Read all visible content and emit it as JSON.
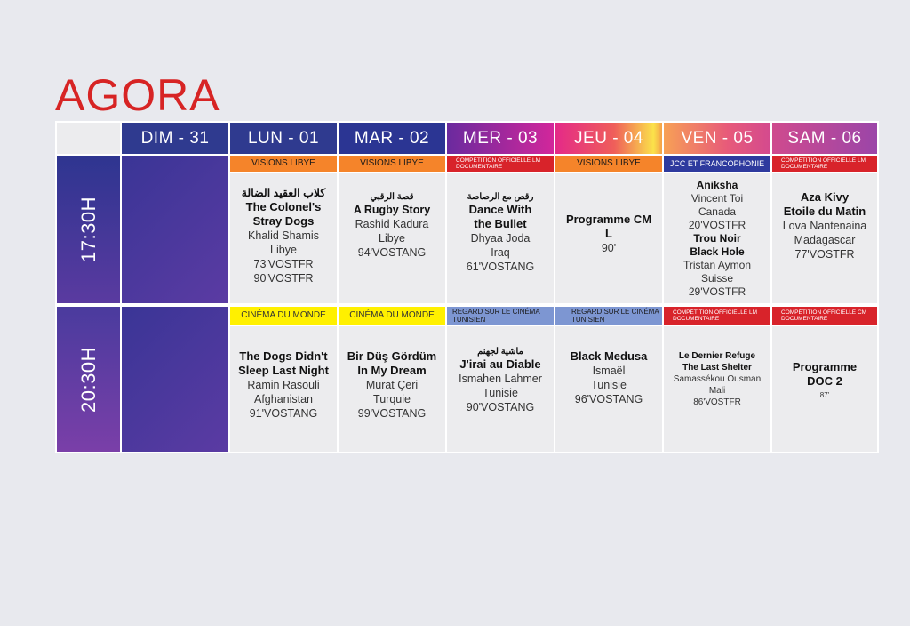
{
  "page_title": "AGORA",
  "days": [
    "DIM - 31",
    "LUN - 01",
    "MAR - 02",
    "MER - 03",
    "JEU - 04",
    "VEN - 05",
    "SAM - 06"
  ],
  "times": [
    "17:30H",
    "20:30H"
  ],
  "colors": {
    "title": "#d72424",
    "orange_tag": "#f5842a",
    "red_tag": "#d8232a",
    "blue_tag": "#2e3a9e",
    "yellow_tag": "#fff000",
    "lightblue_tag": "#7d96d2",
    "purple_block": "#4a3b9c"
  },
  "row1": {
    "lun": {
      "tag": "VISIONS LIBYE",
      "arabic": "كلاب العقيد الضالة",
      "title1": "The Colonel's",
      "title2": "Stray Dogs",
      "director": "Khalid Shamis",
      "country": "Libye",
      "dur1": "73'VOSTFR",
      "dur2": "90'VOSTFR"
    },
    "mar": {
      "tag": "VISIONS LIBYE",
      "arabic": "قصة الرقبي",
      "title": "A Rugby Story",
      "director": "Rashid Kadura",
      "country": "Libye",
      "dur": "94'VOSTANG"
    },
    "mer": {
      "tag": "COMPÉTITION OFFICIELLE LM DOCUMENTAIRE",
      "arabic": "رقص مع الرصاصة",
      "title1": "Dance With",
      "title2": "the Bullet",
      "director": "Dhyaa Joda",
      "country": "Iraq",
      "dur": "61'VOSTANG"
    },
    "jeu": {
      "tag": "VISIONS LIBYE",
      "title1": "Programme CM",
      "title2": "L",
      "dur": "90'"
    },
    "ven": {
      "tag": "JCC ET FRANCOPHONIE",
      "title_a": "Aniksha",
      "director_a": "Vincent Toi",
      "country_a": "Canada",
      "dur_a": "20'VOSTFR",
      "title_b1": "Trou Noir",
      "title_b2": "Black Hole",
      "director_b": "Tristan Aymon",
      "country_b": "Suisse",
      "dur_b": "29'VOSTFR"
    },
    "sam": {
      "tag": "COMPÉTITION OFFICIELLE LM DOCUMENTAIRE",
      "title1": "Aza Kivy",
      "title2": "Etoile du Matin",
      "director": "Lova Nantenaina",
      "country": "Madagascar",
      "dur": "77'VOSTFR"
    }
  },
  "row2": {
    "lun": {
      "tag": "CINÉMA DU MONDE",
      "title1": "The Dogs Didn't",
      "title2": "Sleep Last Night",
      "director": "Ramin Rasouli",
      "country": "Afghanistan",
      "dur": "91'VOSTANG"
    },
    "mar": {
      "tag": "CINÉMA DU MONDE",
      "title1": "Bir Düş Gördüm",
      "title2": "In My Dream",
      "director": "Murat Çeri",
      "country": "Turquie",
      "dur": "99'VOSTANG"
    },
    "mer": {
      "tag": "REGARD SUR LE CINÉMA TUNISIEN",
      "arabic": "ماشية لجهنم",
      "title": "J'irai au Diable",
      "director": "Ismahen Lahmer",
      "country": "Tunisie",
      "dur": "90'VOSTANG"
    },
    "jeu": {
      "tag": "REGARD SUR LE CINÉMA TUNISIEN",
      "title": "Black Medusa",
      "director": "Ismaël",
      "country": "Tunisie",
      "dur": "96'VOSTANG"
    },
    "ven": {
      "tag": "COMPÉTITION OFFICIELLE LM DOCUMENTAIRE",
      "title1": "Le Dernier Refuge",
      "title2": "The Last Shelter",
      "director": "Samassékou Ousman",
      "country": "Mali",
      "dur": "86'VOSTFR"
    },
    "sam": {
      "tag": "COMPÉTITION OFFICIELLE CM DOCUMENTAIRE",
      "title1": "Programme",
      "title2": "DOC 2",
      "dur": "87'"
    }
  }
}
